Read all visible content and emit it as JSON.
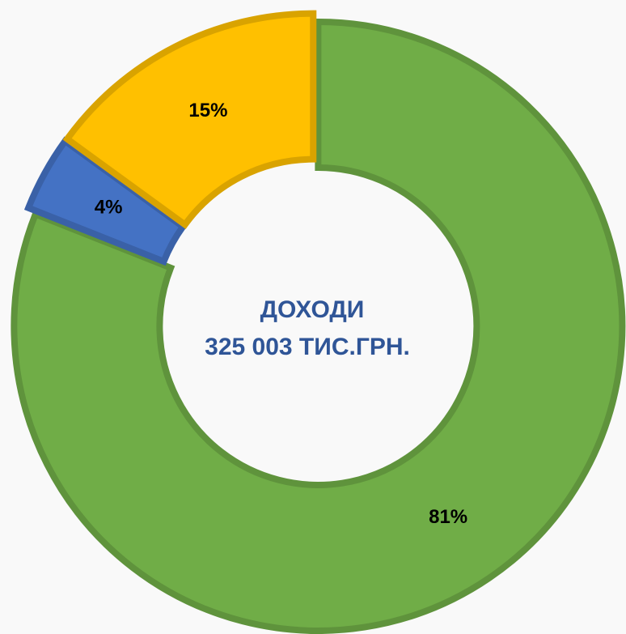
{
  "chart_data": {
    "type": "donut",
    "title": "ДОХОДИ",
    "subtitle": "325 003 ТИС.ГРН.",
    "values": [
      81,
      4,
      15
    ],
    "value_labels": [
      "81%",
      "4%",
      "15%"
    ],
    "colors": [
      "#70ad47",
      "#4472c4",
      "#ffc000"
    ]
  }
}
